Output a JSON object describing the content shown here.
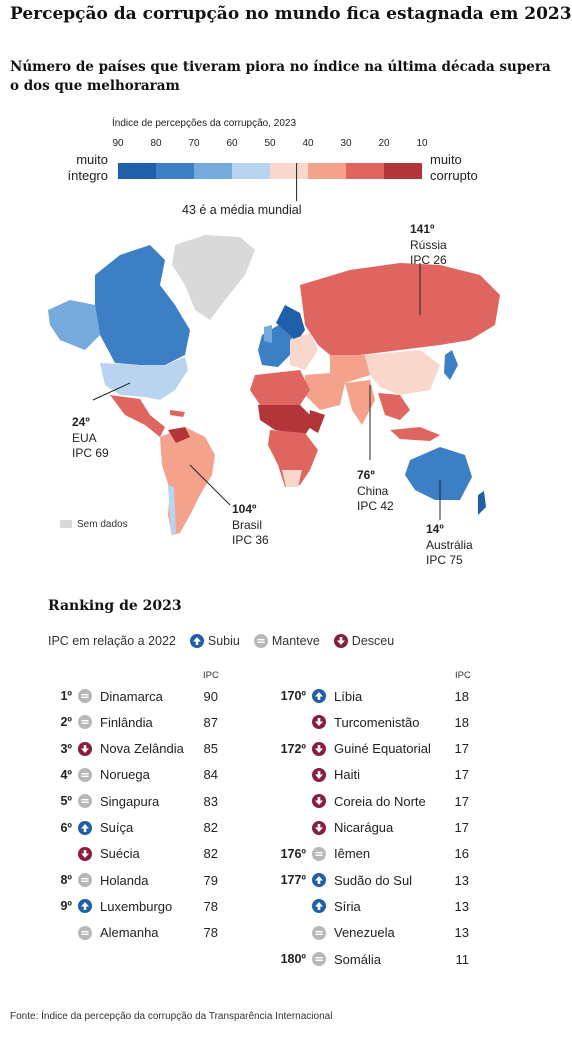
{
  "title": "Percepção da corrupção no mundo fica estagnada em 2023",
  "subtitle": "Número de países que tiveram piora no índice na última década supera o dos que melhoraram",
  "chart_data": {
    "type": "choropleth-map",
    "legend": {
      "title": "Índice de percepções da corrupção, 2023",
      "ticks": [
        "90",
        "80",
        "70",
        "60",
        "50",
        "40",
        "30",
        "20",
        "10"
      ],
      "colors": [
        "#1f5ea8",
        "#3d7fc4",
        "#76a9dc",
        "#b9d4ee",
        "#f9d7cc",
        "#f4a28c",
        "#df6660",
        "#b2353a"
      ],
      "left_label": [
        "muito",
        "íntegro"
      ],
      "right_label": [
        "muito",
        "corrupto"
      ],
      "world_average_label": "43 é a média mundial",
      "world_average": 43,
      "no_data_label": "Sem dados"
    },
    "callouts": [
      {
        "rank": "141º",
        "country": "Rússia",
        "ipc": "IPC 26"
      },
      {
        "rank": "24º",
        "country": "EUA",
        "ipc": "IPC 69"
      },
      {
        "rank": "76º",
        "country": "China",
        "ipc": "IPC 42"
      },
      {
        "rank": "104º",
        "country": "Brasil",
        "ipc": "IPC 36"
      },
      {
        "rank": "14º",
        "country": "Austrália",
        "ipc": "IPC 75"
      }
    ],
    "regions": [
      {
        "name": "Groenlândia",
        "color": "#d9d9d9"
      },
      {
        "name": "Canadá",
        "color": "#3d7fc4"
      },
      {
        "name": "Alasca",
        "color": "#76a9dc"
      },
      {
        "name": "EUA",
        "color": "#b9d4ee"
      },
      {
        "name": "México",
        "color": "#df6660"
      },
      {
        "name": "América do Sul",
        "color": "#f4a28c"
      },
      {
        "name": "Venezuela",
        "color": "#b2353a"
      },
      {
        "name": "Europa Ocidental",
        "color": "#3d7fc4"
      },
      {
        "name": "Nórdicos",
        "color": "#1f5ea8"
      },
      {
        "name": "Rússia",
        "color": "#df6660"
      },
      {
        "name": "China",
        "color": "#f9d7cc"
      },
      {
        "name": "Oriente Médio",
        "color": "#f4a28c"
      },
      {
        "name": "África",
        "color": "#df6660"
      },
      {
        "name": "Sahel",
        "color": "#b2353a"
      },
      {
        "name": "Índia",
        "color": "#f4a28c"
      },
      {
        "name": "Sudeste Asiático",
        "color": "#df6660"
      },
      {
        "name": "Japão",
        "color": "#3d7fc4"
      },
      {
        "name": "Austrália",
        "color": "#3d7fc4"
      },
      {
        "name": "Nova Zelândia",
        "color": "#1f5ea8"
      }
    ]
  },
  "ranking": {
    "title": "Ranking de 2023",
    "status_label": "IPC em relação a 2022",
    "status": {
      "up": "Subiu",
      "same": "Manteve",
      "down": "Desceu"
    },
    "ipc_header": "IPC",
    "top": [
      {
        "pos": "1º",
        "status": "same",
        "country": "Dinamarca",
        "ipc": 90
      },
      {
        "pos": "2º",
        "status": "same",
        "country": "Finlândia",
        "ipc": 87
      },
      {
        "pos": "3º",
        "status": "down",
        "country": "Nova Zelândia",
        "ipc": 85
      },
      {
        "pos": "4º",
        "status": "same",
        "country": "Noruega",
        "ipc": 84
      },
      {
        "pos": "5º",
        "status": "same",
        "country": "Singapura",
        "ipc": 83
      },
      {
        "pos": "6º",
        "status": "up",
        "country": "Suíça",
        "ipc": 82
      },
      {
        "pos": "",
        "status": "down",
        "country": "Suécia",
        "ipc": 82
      },
      {
        "pos": "8º",
        "status": "same",
        "country": "Holanda",
        "ipc": 79
      },
      {
        "pos": "9º",
        "status": "up",
        "country": "Luxemburgo",
        "ipc": 78
      },
      {
        "pos": "",
        "status": "same",
        "country": "Alemanha",
        "ipc": 78
      }
    ],
    "bottom": [
      {
        "pos": "170º",
        "status": "up",
        "country": "Líbia",
        "ipc": 18
      },
      {
        "pos": "",
        "status": "down",
        "country": "Turcomenistão",
        "ipc": 18
      },
      {
        "pos": "172º",
        "status": "down",
        "country": "Guiné Equatorial",
        "ipc": 17
      },
      {
        "pos": "",
        "status": "down",
        "country": "Haiti",
        "ipc": 17
      },
      {
        "pos": "",
        "status": "down",
        "country": "Coreia do Norte",
        "ipc": 17
      },
      {
        "pos": "",
        "status": "down",
        "country": "Nicarágua",
        "ipc": 17
      },
      {
        "pos": "176º",
        "status": "same",
        "country": "Iêmen",
        "ipc": 16
      },
      {
        "pos": "177º",
        "status": "up",
        "country": "Sudão do Sul",
        "ipc": 13
      },
      {
        "pos": "",
        "status": "up",
        "country": "Síria",
        "ipc": 13
      },
      {
        "pos": "",
        "status": "same",
        "country": "Venezuela",
        "ipc": 13
      },
      {
        "pos": "180º",
        "status": "same",
        "country": "Somália",
        "ipc": 11
      }
    ]
  },
  "source": "Fonte: Índice da percepção da corrupção da Transparência Internacional"
}
